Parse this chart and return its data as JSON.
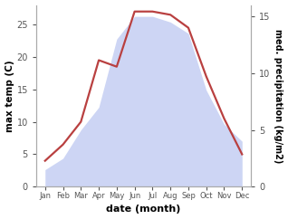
{
  "months": [
    "Jan",
    "Feb",
    "Mar",
    "Apr",
    "May",
    "Jun",
    "Jul",
    "Aug",
    "Sep",
    "Oct",
    "Nov",
    "Dec"
  ],
  "month_positions": [
    1,
    2,
    3,
    4,
    5,
    6,
    7,
    8,
    9,
    10,
    11,
    12
  ],
  "temp": [
    4.0,
    6.5,
    10.0,
    19.5,
    18.5,
    27.0,
    27.0,
    26.5,
    24.5,
    17.0,
    10.5,
    5.0
  ],
  "precip": [
    1.5,
    2.5,
    5.0,
    7.0,
    13.0,
    15.0,
    15.0,
    14.5,
    13.5,
    8.5,
    5.5,
    4.0
  ],
  "temp_color": "#b94040",
  "precip_fill_color": "#b8c4f0",
  "precip_fill_alpha": 0.7,
  "ylim_temp": [
    0,
    28
  ],
  "ylim_precip": [
    0,
    16
  ],
  "yticks_temp": [
    0,
    5,
    10,
    15,
    20,
    25
  ],
  "yticks_precip": [
    0,
    5,
    10,
    15
  ],
  "xlabel": "date (month)",
  "ylabel_left": "max temp (C)",
  "ylabel_right": "med. precipitation (kg/m2)",
  "background_color": "#ffffff",
  "temp_linewidth": 1.6,
  "fig_width": 3.18,
  "fig_height": 2.42,
  "spine_color": "#aaaaaa",
  "tick_color": "#555555"
}
